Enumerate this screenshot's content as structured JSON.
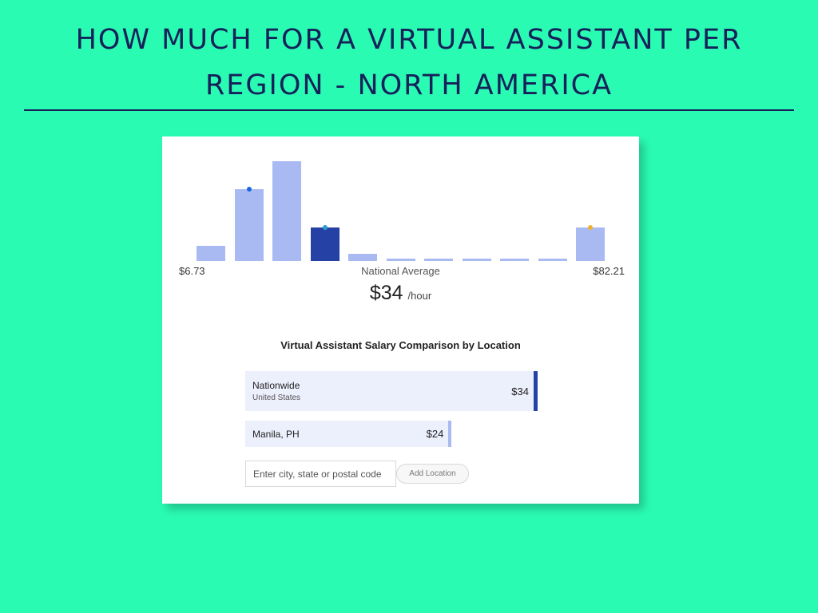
{
  "title": {
    "line1": "HOW MUCH FOR A VIRTUAL ASSISTANT PER",
    "line2": "REGION -  NORTH AMERICA"
  },
  "chart_data": {
    "type": "bar",
    "range_min_label": "$6.73",
    "range_max_label": "$82.21",
    "x_range": [
      6.73,
      82.21
    ],
    "values": [
      15,
      72,
      100,
      34,
      7,
      2.5,
      2.5,
      2,
      2,
      2,
      34
    ],
    "highlighted_index": 3,
    "markers": [
      {
        "bar_index": 1,
        "color": "#1a66e0"
      },
      {
        "bar_index": 3,
        "color": "#2aa0d0"
      },
      {
        "bar_index": 10,
        "color": "#f0b030"
      }
    ],
    "colors": {
      "bar": "#a9baf2",
      "highlight": "#2541a6"
    }
  },
  "national_average": {
    "label": "National Average",
    "amount": "$34",
    "unit": "/hour"
  },
  "comparison": {
    "title": "Virtual Assistant Salary Comparison by Location",
    "locations": [
      {
        "name": "Nationwide",
        "sub": "United States",
        "value": "$34",
        "amount": 34,
        "cap_color": "#2541a6"
      },
      {
        "name": "Manila, PH",
        "sub": "",
        "value": "$24",
        "amount": 24,
        "cap_color": "#a9baf2"
      }
    ],
    "input_placeholder": "Enter city, state or postal code",
    "add_button_label": "Add Location"
  }
}
